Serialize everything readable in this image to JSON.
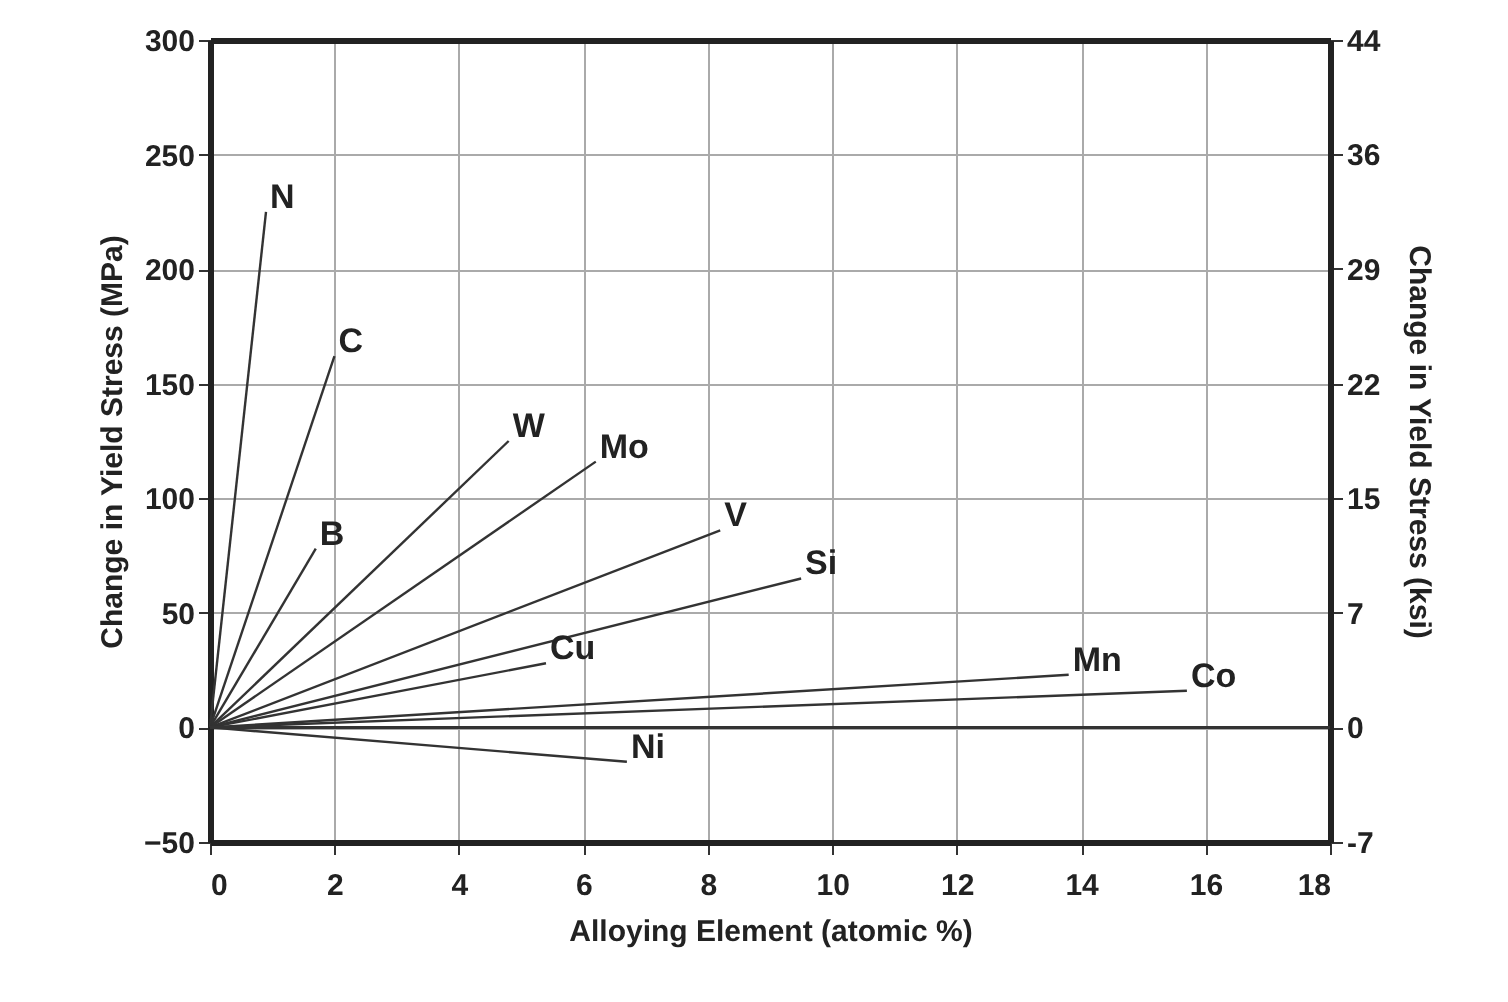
{
  "chart_data": {
    "type": "line",
    "xlabel": "Alloying Element (atomic %)",
    "ylabel": "Change in Yield Stress (MPa)",
    "y2label": "Change in Yield Stress (ksi)",
    "xlim": [
      0,
      18
    ],
    "xticks": [
      0,
      2,
      4,
      6,
      8,
      10,
      12,
      14,
      16,
      18
    ],
    "ylim": [
      -50,
      300
    ],
    "yticks": [
      -50,
      0,
      50,
      100,
      150,
      200,
      250,
      300
    ],
    "y2lim": [
      -7.25,
      43.5
    ],
    "y2ticks": [
      {
        "value": -7.25,
        "label": "-7"
      },
      0,
      {
        "value": 7.25,
        "label": "7"
      },
      {
        "value": 14.5,
        "label": "15"
      },
      {
        "value": 21.76,
        "label": "22"
      },
      {
        "value": 29.01,
        "label": "29"
      },
      {
        "value": 36.26,
        "label": "36"
      },
      {
        "value": 43.5,
        "label": "44"
      }
    ],
    "grid": true,
    "marker": "none",
    "line_style": "solid",
    "ref_lines": [
      {
        "axis": "y",
        "value": 0,
        "color": "#333333"
      }
    ],
    "series": [
      {
        "name": "N",
        "color": "#333333",
        "x": [
          0,
          0.9
        ],
        "values": [
          0,
          225
        ]
      },
      {
        "name": "C",
        "color": "#333333",
        "x": [
          0,
          2.0
        ],
        "values": [
          0,
          162
        ]
      },
      {
        "name": "B",
        "color": "#333333",
        "x": [
          0,
          1.7
        ],
        "values": [
          0,
          78
        ]
      },
      {
        "name": "W",
        "color": "#333333",
        "x": [
          0,
          4.8
        ],
        "values": [
          0,
          125
        ]
      },
      {
        "name": "Mo",
        "color": "#333333",
        "x": [
          0,
          6.2
        ],
        "values": [
          0,
          116
        ]
      },
      {
        "name": "V",
        "color": "#333333",
        "x": [
          0,
          8.2
        ],
        "values": [
          0,
          86
        ]
      },
      {
        "name": "Si",
        "color": "#333333",
        "x": [
          0,
          9.5
        ],
        "values": [
          0,
          65
        ]
      },
      {
        "name": "Cu",
        "color": "#333333",
        "x": [
          0,
          5.4
        ],
        "values": [
          0,
          28
        ]
      },
      {
        "name": "Mn",
        "color": "#333333",
        "x": [
          0,
          13.8
        ],
        "values": [
          0,
          23
        ]
      },
      {
        "name": "Co",
        "color": "#333333",
        "x": [
          0,
          15.7
        ],
        "values": [
          0,
          16
        ]
      },
      {
        "name": "Ni",
        "color": "#333333",
        "x": [
          0,
          6.7
        ],
        "values": [
          0,
          -15
        ]
      }
    ]
  }
}
